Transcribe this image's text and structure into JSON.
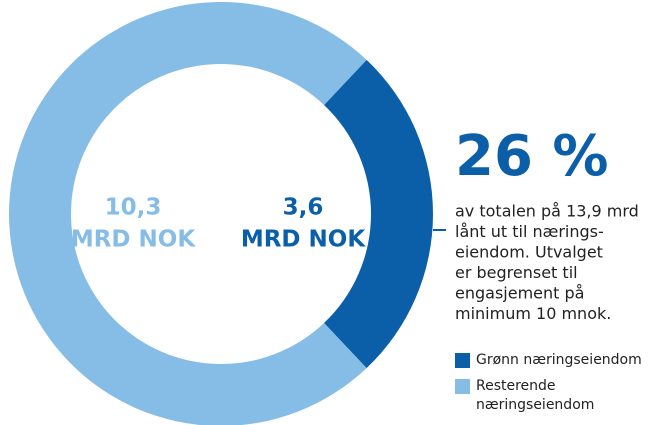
{
  "chart_data": {
    "type": "donut",
    "categories": [
      "Grønn næringseiendom",
      "Resterende næringseiendom"
    ],
    "values": [
      3.6,
      10.3
    ],
    "value_labels": [
      "3,6",
      "10,3"
    ],
    "unit": "MRD NOK",
    "colors": [
      "#0b5fa9",
      "#86bde6"
    ],
    "headline": "26 %",
    "annotation": [
      "av totalen på 13,9 mrd",
      "lånt ut til nærings-",
      "eiendom. Utvalget",
      "er begrenset til",
      "engasjement på",
      "minimum 10 mnok."
    ]
  }
}
